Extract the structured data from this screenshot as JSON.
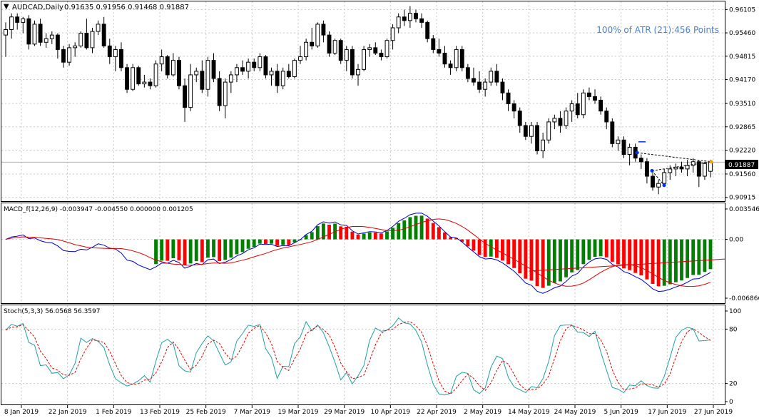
{
  "window": {
    "symbol_label": "AUDCAD,Daily",
    "ohlc_label": "0.91635 0.91956 0.91468 0.91887",
    "atr_label": "100% of ATR (21):456 Points",
    "current_price": "0.91887"
  },
  "colors": {
    "bull": "#ffffff",
    "bear": "#000000",
    "grid": "#c8c8c8",
    "macd_pos": "#008000",
    "macd_neg": "#ff0000",
    "macd_line": "#0000c8",
    "signal_line": "#e00000",
    "stoch_main": "#20a0a0",
    "stoch_signal": "#e00000",
    "atr_text": "#4a7fd0",
    "price_tag_bg": "#000000"
  },
  "price_axis": [
    "0.96105",
    "0.95460",
    "0.94815",
    "0.94170",
    "0.93510",
    "0.92865",
    "0.92220",
    "0.91560",
    "0.90915"
  ],
  "time_axis": [
    "8 Jan 2019",
    "22 Jan 2019",
    "1 Feb 2019",
    "13 Feb 2019",
    "25 Feb 2019",
    "7 Mar 2019",
    "19 Mar 2019",
    "29 Mar 2019",
    "10 Apr 2019",
    "22 Apr 2019",
    "2 May 2019",
    "14 May 2019",
    "24 May 2019",
    "5 Jun 2019",
    "17 Jun 2019",
    "27 Jun 2019"
  ],
  "macd": {
    "label": "MACD_f(12,26,9) -0.003947 -0.004550 0.000000 0.001205",
    "axis": [
      "0.003546",
      "0.00",
      "-0.006866"
    ]
  },
  "stoch": {
    "label": "Stoch(5,3,3) 56.0568 56.3597",
    "axis": [
      "100",
      "80",
      "20",
      "0"
    ]
  },
  "chart_data": {
    "type": "candlestick",
    "symbol": "AUDCAD",
    "timeframe": "Daily",
    "ylim": [
      0.9085,
      0.9625
    ],
    "candles": [
      [
        0.954,
        0.9575,
        0.948,
        0.9555
      ],
      [
        0.9555,
        0.96,
        0.953,
        0.959
      ],
      [
        0.959,
        0.96,
        0.9555,
        0.9575
      ],
      [
        0.9575,
        0.959,
        0.9545,
        0.9585
      ],
      [
        0.9585,
        0.9595,
        0.95,
        0.9515
      ],
      [
        0.9515,
        0.958,
        0.951,
        0.957
      ],
      [
        0.957,
        0.9585,
        0.951,
        0.952
      ],
      [
        0.952,
        0.9545,
        0.9505,
        0.953
      ],
      [
        0.953,
        0.955,
        0.9515,
        0.954
      ],
      [
        0.954,
        0.9545,
        0.9475,
        0.95
      ],
      [
        0.95,
        0.951,
        0.945,
        0.9465
      ],
      [
        0.9465,
        0.9515,
        0.9455,
        0.9505
      ],
      [
        0.9505,
        0.952,
        0.948,
        0.951
      ],
      [
        0.951,
        0.955,
        0.9505,
        0.9545
      ],
      [
        0.9545,
        0.9585,
        0.95,
        0.9505
      ],
      [
        0.9505,
        0.956,
        0.949,
        0.955
      ],
      [
        0.955,
        0.958,
        0.954,
        0.957
      ],
      [
        0.957,
        0.959,
        0.9505,
        0.951
      ],
      [
        0.951,
        0.953,
        0.946,
        0.948
      ],
      [
        0.948,
        0.951,
        0.944,
        0.95
      ],
      [
        0.95,
        0.952,
        0.944,
        0.945
      ],
      [
        0.945,
        0.946,
        0.938,
        0.939
      ],
      [
        0.939,
        0.946,
        0.9385,
        0.945
      ],
      [
        0.945,
        0.9455,
        0.94,
        0.9405
      ],
      [
        0.9405,
        0.943,
        0.9395,
        0.941
      ],
      [
        0.941,
        0.942,
        0.939,
        0.94
      ],
      [
        0.94,
        0.947,
        0.9395,
        0.946
      ],
      [
        0.946,
        0.95,
        0.944,
        0.948
      ],
      [
        0.948,
        0.9485,
        0.942,
        0.943
      ],
      [
        0.943,
        0.949,
        0.9425,
        0.947
      ],
      [
        0.947,
        0.948,
        0.939,
        0.94
      ],
      [
        0.94,
        0.942,
        0.93,
        0.934
      ],
      [
        0.934,
        0.946,
        0.933,
        0.943
      ],
      [
        0.943,
        0.945,
        0.941,
        0.944
      ],
      [
        0.944,
        0.947,
        0.938,
        0.939
      ],
      [
        0.939,
        0.948,
        0.937,
        0.947
      ],
      [
        0.947,
        0.949,
        0.941,
        0.942
      ],
      [
        0.942,
        0.944,
        0.933,
        0.9345
      ],
      [
        0.9345,
        0.942,
        0.931,
        0.941
      ],
      [
        0.941,
        0.944,
        0.938,
        0.943
      ],
      [
        0.943,
        0.946,
        0.941,
        0.945
      ],
      [
        0.945,
        0.947,
        0.943,
        0.944
      ],
      [
        0.944,
        0.9475,
        0.942,
        0.9465
      ],
      [
        0.9465,
        0.9475,
        0.944,
        0.945
      ],
      [
        0.945,
        0.949,
        0.944,
        0.948
      ],
      [
        0.948,
        0.9485,
        0.942,
        0.943
      ],
      [
        0.943,
        0.945,
        0.94,
        0.944
      ],
      [
        0.944,
        0.946,
        0.938,
        0.94
      ],
      [
        0.94,
        0.945,
        0.939,
        0.944
      ],
      [
        0.944,
        0.946,
        0.942,
        0.9425
      ],
      [
        0.9425,
        0.9475,
        0.942,
        0.947
      ],
      [
        0.947,
        0.951,
        0.946,
        0.948
      ],
      [
        0.948,
        0.953,
        0.947,
        0.952
      ],
      [
        0.952,
        0.956,
        0.95,
        0.951
      ],
      [
        0.951,
        0.9575,
        0.9505,
        0.957
      ],
      [
        0.957,
        0.958,
        0.952,
        0.954
      ],
      [
        0.954,
        0.955,
        0.948,
        0.949
      ],
      [
        0.949,
        0.953,
        0.9485,
        0.9525
      ],
      [
        0.9525,
        0.953,
        0.946,
        0.947
      ],
      [
        0.947,
        0.951,
        0.944,
        0.95
      ],
      [
        0.95,
        0.951,
        0.942,
        0.943
      ],
      [
        0.943,
        0.946,
        0.94,
        0.9445
      ],
      [
        0.9445,
        0.951,
        0.944,
        0.95
      ],
      [
        0.95,
        0.9515,
        0.948,
        0.9505
      ],
      [
        0.9505,
        0.952,
        0.9485,
        0.949
      ],
      [
        0.949,
        0.95,
        0.947,
        0.948
      ],
      [
        0.948,
        0.953,
        0.9475,
        0.9525
      ],
      [
        0.9525,
        0.957,
        0.95,
        0.956
      ],
      [
        0.956,
        0.96,
        0.9545,
        0.959
      ],
      [
        0.959,
        0.961,
        0.9565,
        0.958
      ],
      [
        0.958,
        0.962,
        0.956,
        0.96
      ],
      [
        0.96,
        0.961,
        0.9575,
        0.9585
      ],
      [
        0.9585,
        0.96,
        0.956,
        0.9575
      ],
      [
        0.9575,
        0.958,
        0.952,
        0.953
      ],
      [
        0.953,
        0.954,
        0.949,
        0.95
      ],
      [
        0.95,
        0.953,
        0.948,
        0.949
      ],
      [
        0.949,
        0.951,
        0.945,
        0.946
      ],
      [
        0.946,
        0.947,
        0.943,
        0.945
      ],
      [
        0.945,
        0.951,
        0.944,
        0.95
      ],
      [
        0.95,
        0.951,
        0.944,
        0.945
      ],
      [
        0.945,
        0.946,
        0.941,
        0.942
      ],
      [
        0.942,
        0.945,
        0.94,
        0.941
      ],
      [
        0.941,
        0.944,
        0.938,
        0.939
      ],
      [
        0.939,
        0.942,
        0.937,
        0.941
      ],
      [
        0.941,
        0.945,
        0.94,
        0.944
      ],
      [
        0.944,
        0.946,
        0.94,
        0.941
      ],
      [
        0.941,
        0.942,
        0.936,
        0.938
      ],
      [
        0.938,
        0.939,
        0.933,
        0.935
      ],
      [
        0.935,
        0.936,
        0.931,
        0.933
      ],
      [
        0.933,
        0.934,
        0.927,
        0.929
      ],
      [
        0.929,
        0.93,
        0.925,
        0.926
      ],
      [
        0.926,
        0.93,
        0.924,
        0.929
      ],
      [
        0.929,
        0.93,
        0.921,
        0.922
      ],
      [
        0.922,
        0.927,
        0.92,
        0.925
      ],
      [
        0.925,
        0.931,
        0.924,
        0.93
      ],
      [
        0.93,
        0.932,
        0.928,
        0.931
      ],
      [
        0.931,
        0.933,
        0.927,
        0.929
      ],
      [
        0.929,
        0.934,
        0.928,
        0.933
      ],
      [
        0.933,
        0.936,
        0.93,
        0.935
      ],
      [
        0.935,
        0.938,
        0.931,
        0.932
      ],
      [
        0.932,
        0.939,
        0.931,
        0.938
      ],
      [
        0.938,
        0.9395,
        0.936,
        0.937
      ],
      [
        0.937,
        0.939,
        0.935,
        0.936
      ],
      [
        0.936,
        0.937,
        0.932,
        0.933
      ],
      [
        0.933,
        0.934,
        0.928,
        0.93
      ],
      [
        0.93,
        0.931,
        0.923,
        0.924
      ],
      [
        0.924,
        0.926,
        0.922,
        0.925
      ],
      [
        0.925,
        0.926,
        0.92,
        0.921
      ],
      [
        0.921,
        0.924,
        0.918,
        0.923
      ],
      [
        0.923,
        0.924,
        0.919,
        0.92
      ],
      [
        0.92,
        0.921,
        0.917,
        0.919
      ],
      [
        0.919,
        0.92,
        0.913,
        0.915
      ],
      [
        0.915,
        0.916,
        0.911,
        0.912
      ],
      [
        0.912,
        0.914,
        0.91,
        0.913
      ],
      [
        0.913,
        0.917,
        0.912,
        0.916
      ],
      [
        0.916,
        0.918,
        0.914,
        0.917
      ],
      [
        0.917,
        0.9185,
        0.915,
        0.9175
      ],
      [
        0.9175,
        0.919,
        0.916,
        0.917
      ],
      [
        0.917,
        0.9195,
        0.915,
        0.918
      ],
      [
        0.918,
        0.92,
        0.916,
        0.919
      ],
      [
        0.919,
        0.9195,
        0.912,
        0.915
      ],
      [
        0.915,
        0.919,
        0.914,
        0.9185
      ],
      [
        0.91635,
        0.91956,
        0.91468,
        0.91887
      ]
    ]
  }
}
